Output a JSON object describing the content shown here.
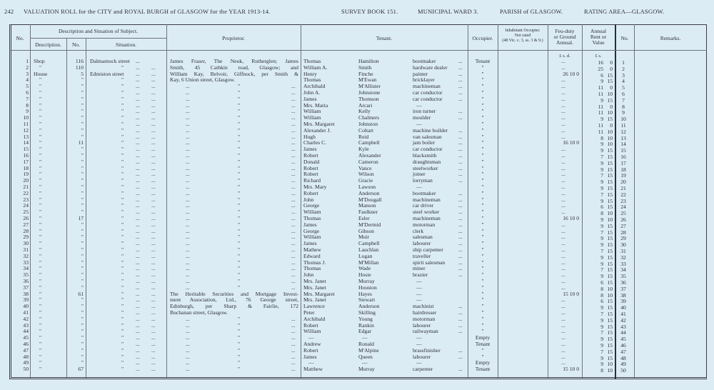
{
  "page_header": {
    "page_number": "242",
    "title": "VALUATION ROLL for the CITY and ROYAL BURGH of GLASGOW for the YEAR 1913-14.",
    "survey_book": "SURVEY BOOK 151.",
    "ward": "MUNICIPAL WARD 3.",
    "parish": "PARISH of GLASGOW.",
    "rating_area": "RATING AREA—GLASGOW."
  },
  "headers": {
    "no": "No.",
    "subject_group": "Description and Situation of Subject.",
    "description": "Description.",
    "number": "No.",
    "situation": "Situation.",
    "proprietor": "Proprietor.",
    "tenant": "Tenant.",
    "occupier": "Occupier.",
    "inhabitant_1": "Inhabitant Occupier.",
    "inhabitant_2": "Not rated",
    "inhabitant_3": "(48 Vic. c. 3, ss. 3 & 9.)",
    "feu_1": "Feu-duty",
    "feu_2": "or Ground",
    "feu_3": "Annual.",
    "rent_1": "Annual",
    "rent_2": "Rent or",
    "rent_3": "Value",
    "no_right": "No.",
    "remarks": "Remarks.",
    "feu_units": "£  s.  d.",
    "rent_units": "£  s."
  },
  "leader": "...",
  "columns": [
    "no",
    "description",
    "number",
    "situation",
    "proprietor",
    "tenant_first",
    "tenant_surname",
    "occupation",
    "occupier",
    "feu_duty",
    "rent_pounds",
    "rent_shillings"
  ],
  "rows": [
    [
      "1",
      "Shop",
      "116",
      "Dalmarnock street",
      "James Fraser, The Neuk, Rutherglen; James",
      "Thomas",
      "Hamilton",
      "bootmaker",
      "Tenant",
      "...",
      "16",
      "0"
    ],
    [
      "2",
      "\"",
      "110",
      "\"",
      "Smith, 45 Cathkin road, Glasgow; and",
      "William A.",
      "Smith",
      "hardware dealer",
      "\"",
      "...",
      "25",
      "0"
    ],
    [
      "3",
      "House",
      "5",
      "Edmiston street",
      "William Kay, Belvoir, Giffnock, per Smith &",
      "Henry",
      "Finche",
      "painter",
      "\"",
      "26 10 0",
      "6",
      "15"
    ],
    [
      "4",
      "\"",
      "\"",
      "\"",
      "Kay, 6 Union street, Glasgow.",
      "Thomas",
      "M'Ewan",
      "bricklayer",
      "\"",
      "...",
      "9",
      "15"
    ],
    [
      "5",
      "\"",
      "\"",
      "\"",
      "\"",
      "Archibald",
      "M'Allister",
      "machineman",
      "\"",
      "...",
      "11",
      "0"
    ],
    [
      "6",
      "\"",
      "\"",
      "\"",
      "\"",
      "John A.",
      "Johnstone",
      "car conductor",
      "\"",
      "...",
      "11",
      "10"
    ],
    [
      "7",
      "\"",
      "\"",
      "\"",
      "\"",
      "James",
      "Thomson",
      "car conductor",
      "\"",
      "...",
      "9",
      "15"
    ],
    [
      "8",
      "\"",
      "\"",
      "\"",
      "\"",
      "Mrs. Maria",
      "Arcari",
      "—",
      "\"",
      "...",
      "11",
      "0"
    ],
    [
      "9",
      "\"",
      "\"",
      "\"",
      "\"",
      "William",
      "Kelly",
      "iron turner",
      "\"",
      "...",
      "11",
      "10"
    ],
    [
      "10",
      "\"",
      "\"",
      "\"",
      "\"",
      "William",
      "Chalmers",
      "moulder",
      "\"",
      "...",
      "9",
      "15"
    ],
    [
      "11",
      "\"",
      "\"",
      "\"",
      "\"",
      "Mrs. Margaret",
      "Johnston",
      "—",
      "\"",
      "...",
      "11",
      "0"
    ],
    [
      "12",
      "\"",
      "\"",
      "\"",
      "\"",
      "Alexander J.",
      "Coltart",
      "machine builder",
      "\"",
      "...",
      "11",
      "10"
    ],
    [
      "13",
      "\"",
      "\"",
      "\"",
      "\"",
      "Hugh",
      "Reid",
      "van salesman",
      "\"",
      "...",
      "8",
      "10"
    ],
    [
      "14",
      "\"",
      "11",
      "\"",
      "\"",
      "Charles C.",
      "Campbell",
      "jam boiler",
      "\"",
      "16 10 0",
      "9",
      "10"
    ],
    [
      "15",
      "\"",
      "\"",
      "\"",
      "\"",
      "James",
      "Kyle",
      "car conductor",
      "\"",
      "...",
      "9",
      "15"
    ],
    [
      "16",
      "\"",
      "\"",
      "\"",
      "\"",
      "Robert",
      "Alexander",
      "blacksmith",
      "\"",
      "...",
      "7",
      "15"
    ],
    [
      "17",
      "\"",
      "\"",
      "\"",
      "\"",
      "Donald",
      "Cameron",
      "draughtsman",
      "\"",
      "...",
      "9",
      "15"
    ],
    [
      "18",
      "\"",
      "\"",
      "\"",
      "\"",
      "Robert",
      "Vance",
      "steelworker",
      "\"",
      "...",
      "9",
      "15"
    ],
    [
      "19",
      "\"",
      "\"",
      "\"",
      "\"",
      "Robert",
      "Wilson",
      "joiner",
      "\"",
      "...",
      "7",
      "15"
    ],
    [
      "20",
      "\"",
      "\"",
      "\"",
      "\"",
      "Richard",
      "Gracie",
      "lorryman",
      "\"",
      "...",
      "9",
      "15"
    ],
    [
      "21",
      "\"",
      "\"",
      "\"",
      "\"",
      "Mrs. Mary",
      "Lawson",
      "—",
      "\"",
      "...",
      "9",
      "15"
    ],
    [
      "22",
      "\"",
      "\"",
      "\"",
      "\"",
      "Robert",
      "Anderson",
      "bootmaker",
      "\"",
      "...",
      "7",
      "15"
    ],
    [
      "23",
      "\"",
      "\"",
      "\"",
      "\"",
      "John",
      "M'Dougall",
      "machineman",
      "\"",
      "...",
      "9",
      "15"
    ],
    [
      "24",
      "\"",
      "\"",
      "\"",
      "\"",
      "George",
      "Manson",
      "car driver",
      "\"",
      "...",
      "6",
      "15"
    ],
    [
      "25",
      "\"",
      "\"",
      "\"",
      "\"",
      "William",
      "Faulkner",
      "steel worker",
      "\"",
      "...",
      "8",
      "10"
    ],
    [
      "26",
      "\"",
      "17",
      "\"",
      "\"",
      "Thomas",
      "Esler",
      "machineman",
      "\"",
      "16 10 0",
      "9",
      "10"
    ],
    [
      "27",
      "\"",
      "\"",
      "\"",
      "\"",
      "James",
      "M'Dermid",
      "motorman",
      "\"",
      "...",
      "9",
      "15"
    ],
    [
      "28",
      "\"",
      "\"",
      "\"",
      "\"",
      "George",
      "Gibson",
      "clerk",
      "\"",
      "...",
      "7",
      "15"
    ],
    [
      "29",
      "\"",
      "\"",
      "\"",
      "\"",
      "William",
      "Muir",
      "salesman",
      "\"",
      "...",
      "9",
      "15"
    ],
    [
      "30",
      "\"",
      "\"",
      "\"",
      "\"",
      "James",
      "Campbell",
      "labourer",
      "\"",
      "...",
      "9",
      "15"
    ],
    [
      "31",
      "\"",
      "\"",
      "\"",
      "\"",
      "Mathew",
      "Lauchlan",
      "ship carpenter",
      "\"",
      "...",
      "7",
      "15"
    ],
    [
      "32",
      "\"",
      "\"",
      "\"",
      "\"",
      "Edward",
      "Logan",
      "traveller",
      "\"",
      "...",
      "9",
      "15"
    ],
    [
      "33",
      "\"",
      "\"",
      "\"",
      "\"",
      "Thomas J.",
      "M'Millan",
      "spirit salesman",
      "\"",
      "...",
      "9",
      "15"
    ],
    [
      "34",
      "\"",
      "\"",
      "\"",
      "\"",
      "Thomas",
      "Wade",
      "miner",
      "\"",
      "...",
      "7",
      "15"
    ],
    [
      "35",
      "\"",
      "\"",
      "\"",
      "\"",
      "John",
      "Hosie",
      "brazier",
      "\"",
      "...",
      "9",
      "15"
    ],
    [
      "36",
      "\"",
      "\"",
      "\"",
      "\"",
      "Mrs. Janet",
      "Murray",
      "—",
      "\"",
      "...",
      "6",
      "15"
    ],
    [
      "37",
      "\"",
      "\"",
      "\"",
      "\"",
      "Mrs. Janet",
      "Houston",
      "—",
      "\"",
      "...",
      "8",
      "10"
    ],
    [
      "38",
      "\"",
      "61",
      "\"",
      "The Heritable Securities and Mortgage Invest-",
      "Mrs. Margaret",
      "Hayes",
      "—",
      "\"",
      "15 10 0",
      "8",
      "10"
    ],
    [
      "39",
      "\"",
      "\"",
      "\"",
      "ment Association, Ltd., 76 George street,",
      "Mrs. Janet",
      "Stewart",
      "—",
      "\"",
      "...",
      "6",
      "15"
    ],
    [
      "40",
      "\"",
      "\"",
      "\"",
      "Edinburgh, per Sharp & Fairlie, 172",
      "Lawrence",
      "Anderson",
      "machinist",
      "\"",
      "...",
      "9",
      "15"
    ],
    [
      "41",
      "\"",
      "\"",
      "\"",
      "Buchanan street, Glasgow.",
      "Peter",
      "Skilling",
      "hairdresser",
      "\"",
      "...",
      "7",
      "15"
    ],
    [
      "42",
      "\"",
      "\"",
      "\"",
      "\"",
      "Archibald",
      "Young",
      "motorman",
      "\"",
      "...",
      "9",
      "15"
    ],
    [
      "43",
      "\"",
      "\"",
      "\"",
      "\"",
      "Robert",
      "Rankin",
      "labourer",
      "\"",
      "...",
      "9",
      "15"
    ],
    [
      "44",
      "\"",
      "\"",
      "\"",
      "\"",
      "William",
      "Edgar",
      "railwayman",
      "\"",
      "...",
      "7",
      "15"
    ],
    [
      "45",
      "\"",
      "\"",
      "\"",
      "\"",
      "—",
      "—",
      "—",
      "Empty",
      "...",
      "9",
      "15"
    ],
    [
      "46",
      "\"",
      "\"",
      "\"",
      "\"",
      "Andrew",
      "Ronald",
      "—",
      "Tenant",
      "...",
      "9",
      "15"
    ],
    [
      "47",
      "\"",
      "\"",
      "\"",
      "\"",
      "Robert",
      "M'Alpine",
      "brassfinisher",
      "\"",
      "...",
      "7",
      "15"
    ],
    [
      "48",
      "\"",
      "\"",
      "\"",
      "\"",
      "James",
      "Queen",
      "labourer",
      "\"",
      "...",
      "9",
      "15"
    ],
    [
      "49",
      "\"",
      "\"",
      "\"",
      "\"",
      "—",
      "—",
      "—",
      "Empty",
      "...",
      "9",
      "10"
    ],
    [
      "50",
      "\"",
      "67",
      "\"",
      "\"",
      "Matthew",
      "Murray",
      "carpenter",
      "Tenant",
      "15 10 0",
      "8",
      "10"
    ]
  ]
}
